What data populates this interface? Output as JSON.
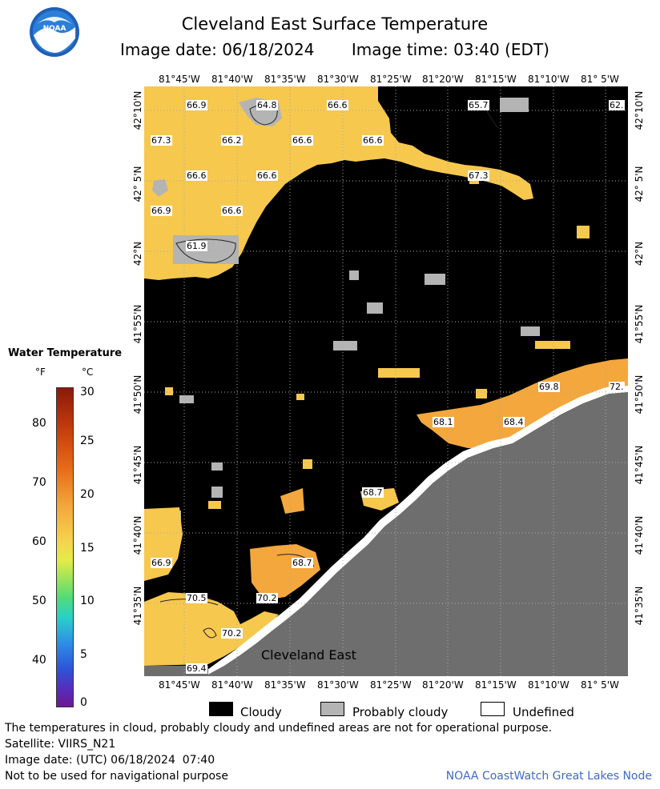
{
  "header": {
    "title": "Cleveland East Surface Temperature",
    "image_date": "Image date: 06/18/2024",
    "image_time": "Image time: 03:40 (EDT)",
    "logo_text": "NOAA"
  },
  "map": {
    "region_label": "Cleveland East",
    "lon_labels_top": [
      "81°45'W",
      "81°40'W",
      "81°35'W",
      "81°30'W",
      "81°25'W",
      "81°20'W",
      "81°15'W",
      "81°10'W",
      "81° 5'W"
    ],
    "lon_labels_bottom": [
      "81°45'W",
      "81°40'W",
      "81°35'W",
      "81°30'W",
      "81°25'W",
      "81°20'W",
      "81°15'W",
      "81°10'W",
      "81° 5'W"
    ],
    "lat_labels": [
      "42°10'N",
      "42° 5'N",
      "42°N",
      "41°55'N",
      "41°50'N",
      "41°45'N",
      "41°40'N",
      "41°35'N"
    ],
    "temperature_labels": [
      "66.9",
      "64.8",
      "66.6",
      "65.7",
      "62.",
      "67.3",
      "66.2",
      "66.6",
      "66.6",
      "66.6",
      "66.6",
      "67.3",
      "66.9",
      "66.6",
      "61.9",
      "69.8",
      "72.",
      "68.1",
      "68.4",
      "68.7",
      "66.9",
      "68.7",
      "70.5",
      "70.2",
      "70.2",
      "69.4"
    ],
    "colors": {
      "cloud": "#000000",
      "probably_cloudy": "#b4b4b4",
      "land": "#6e6e6e",
      "warm_water": "#f6c84e",
      "hot_water": "#f3a73c"
    }
  },
  "legend": {
    "title": "Water Temperature",
    "unit_f": "°F",
    "unit_c": "°C",
    "f_ticks": [
      "80",
      "70",
      "60",
      "50",
      "40"
    ],
    "c_ticks": [
      "30",
      "25",
      "20",
      "15",
      "10",
      "5",
      "0"
    ]
  },
  "key": {
    "cloudy": "Cloudy",
    "probably_cloudy": "Probably cloudy",
    "undefined": "Undefined"
  },
  "footer": {
    "disclaimer": "The temperatures in cloud, probably cloudy and undefined areas are not for operational purpose.",
    "satellite": "Satellite: VIIRS_N21",
    "utc_date": "Image date: (UTC) 06/18/2024  07:40",
    "nav_warning": "Not to be used for navigational purpose",
    "credit": "NOAA CoastWatch Great Lakes Node"
  }
}
